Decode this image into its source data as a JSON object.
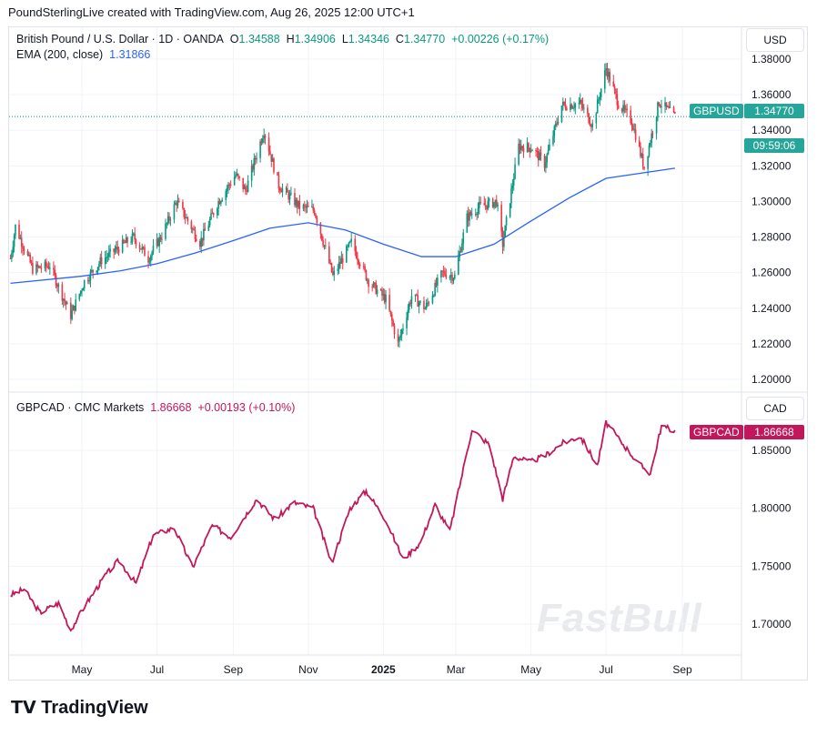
{
  "header": "PoundSterlingLive created with TradingView.com, Aug 26, 2025 12:00 UTC+1",
  "pane1": {
    "title": "British Pound / U.S. Dollar · 1D · OANDA",
    "o": "1.34588",
    "h": "1.34906",
    "l": "1.34346",
    "c": "1.34770",
    "chg": "+0.00226 (+0.17%)",
    "ema_label": "EMA (200, close)",
    "ema_value": "1.31866",
    "currency": "USD",
    "tag": "GBPUSD",
    "price": "1.34770",
    "countdown": "09:59:06"
  },
  "pane2": {
    "title": "GBPCAD · CMC Markets",
    "price_legend": "1.86668",
    "chg": "+0.00193 (+0.10%)",
    "currency": "CAD",
    "tag": "GBPCAD",
    "price": "1.86668"
  },
  "logo": "TradingView",
  "watermark": "FastBull",
  "colors": {
    "up": "#089981",
    "down": "#f23645",
    "ema": "#2962ff",
    "gbpcad": "#c2185b"
  },
  "chart_data": [
    {
      "type": "candlestick",
      "series": [
        {
          "name": "GBPUSD",
          "dates": [
            "2024-03-04",
            "2024-03-08",
            "2024-03-22",
            "2024-04-05",
            "2024-04-12",
            "2024-04-22",
            "2024-05-03",
            "2024-05-17",
            "2024-05-31",
            "2024-06-12",
            "2024-06-24",
            "2024-07-05",
            "2024-07-17",
            "2024-08-05",
            "2024-08-20",
            "2024-09-03",
            "2024-09-11",
            "2024-09-26",
            "2024-10-08",
            "2024-10-25",
            "2024-11-06",
            "2024-11-21",
            "2024-12-06",
            "2024-12-20",
            "2025-01-03",
            "2025-01-13",
            "2025-01-24",
            "2025-02-04",
            "2025-02-18",
            "2025-02-28",
            "2025-03-10",
            "2025-03-20",
            "2025-04-03",
            "2025-04-08",
            "2025-04-21",
            "2025-05-02",
            "2025-05-12",
            "2025-05-26",
            "2025-06-10",
            "2025-06-20",
            "2025-07-01",
            "2025-07-11",
            "2025-07-22",
            "2025-08-01",
            "2025-08-13",
            "2025-08-26"
          ],
          "close": [
            1.268,
            1.286,
            1.262,
            1.264,
            1.252,
            1.236,
            1.255,
            1.267,
            1.274,
            1.28,
            1.268,
            1.281,
            1.3,
            1.277,
            1.3,
            1.315,
            1.306,
            1.34,
            1.309,
            1.297,
            1.295,
            1.258,
            1.277,
            1.255,
            1.245,
            1.22,
            1.247,
            1.24,
            1.26,
            1.258,
            1.291,
            1.297,
            1.3,
            1.276,
            1.331,
            1.33,
            1.321,
            1.354,
            1.355,
            1.343,
            1.375,
            1.355,
            1.345,
            1.319,
            1.356,
            1.3477
          ]
        },
        {
          "name": "EMA (200, close)",
          "dates": [
            "2024-03-04",
            "2024-05-01",
            "2024-06-01",
            "2024-07-01",
            "2024-08-01",
            "2024-09-01",
            "2024-10-01",
            "2024-11-01",
            "2024-12-01",
            "2025-01-01",
            "2025-02-01",
            "2025-03-01",
            "2025-04-01",
            "2025-05-01",
            "2025-06-01",
            "2025-07-01",
            "2025-08-26"
          ],
          "values": [
            1.254,
            1.258,
            1.261,
            1.265,
            1.271,
            1.278,
            1.285,
            1.288,
            1.284,
            1.276,
            1.269,
            1.269,
            1.276,
            1.289,
            1.302,
            1.313,
            1.3187
          ]
        }
      ],
      "ylim": [
        1.19,
        1.39
      ],
      "yticks": [
        "1.20000",
        "1.22000",
        "1.24000",
        "1.26000",
        "1.28000",
        "1.30000",
        "1.32000",
        "1.34000",
        "1.36000",
        "1.38000"
      ],
      "grid": true
    },
    {
      "type": "line",
      "series": [
        {
          "name": "GBPCAD",
          "dates": [
            "2024-03-04",
            "2024-03-15",
            "2024-03-28",
            "2024-04-12",
            "2024-04-22",
            "2024-05-03",
            "2024-05-20",
            "2024-05-31",
            "2024-06-14",
            "2024-06-28",
            "2024-07-15",
            "2024-07-30",
            "2024-08-15",
            "2024-08-30",
            "2024-09-20",
            "2024-10-05",
            "2024-10-20",
            "2024-11-05",
            "2024-11-20",
            "2024-12-05",
            "2024-12-18",
            "2025-01-03",
            "2025-01-17",
            "2025-01-31",
            "2025-02-12",
            "2025-02-24",
            "2025-03-07",
            "2025-03-14",
            "2025-03-28",
            "2025-04-08",
            "2025-04-17",
            "2025-04-30",
            "2025-05-12",
            "2025-05-26",
            "2025-06-10",
            "2025-06-24",
            "2025-07-01",
            "2025-07-15",
            "2025-07-28",
            "2025-08-06",
            "2025-08-15",
            "2025-08-26"
          ],
          "values": [
            1.725,
            1.73,
            1.71,
            1.718,
            1.695,
            1.715,
            1.742,
            1.755,
            1.735,
            1.777,
            1.783,
            1.749,
            1.785,
            1.775,
            1.808,
            1.79,
            1.805,
            1.8,
            1.753,
            1.8,
            1.815,
            1.79,
            1.756,
            1.77,
            1.803,
            1.78,
            1.834,
            1.868,
            1.855,
            1.808,
            1.845,
            1.84,
            1.845,
            1.856,
            1.862,
            1.837,
            1.874,
            1.855,
            1.838,
            1.83,
            1.871,
            1.86668
          ]
        }
      ],
      "ylim": [
        1.675,
        1.885
      ],
      "yticks": [
        "1.70000",
        "1.75000",
        "1.80000",
        "1.85000"
      ],
      "grid": true
    }
  ],
  "xticks": [
    "May",
    "Jul",
    "Sep",
    "Nov",
    "2025",
    "Mar",
    "May",
    "Jul",
    "Sep"
  ]
}
